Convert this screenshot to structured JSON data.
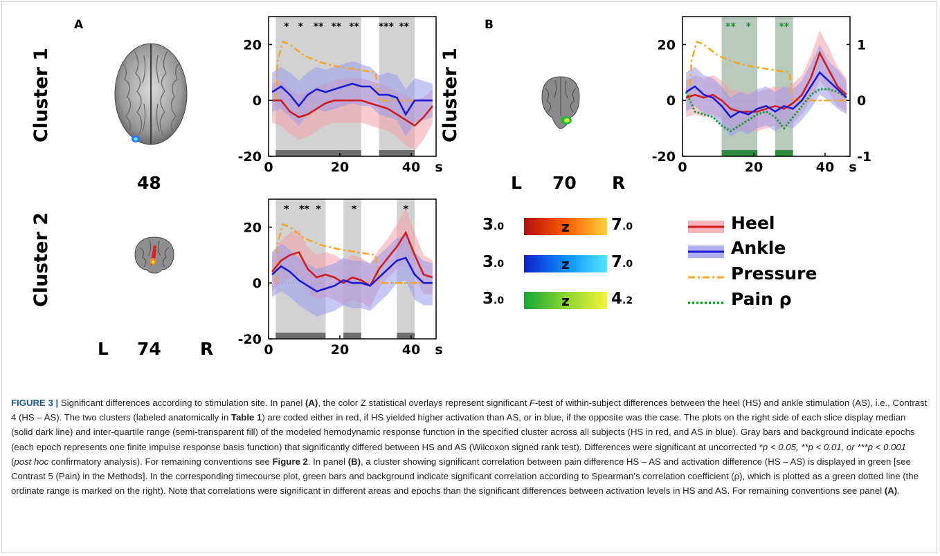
{
  "panels": {
    "a_label": "A",
    "b_label": "B"
  },
  "clusters": {
    "a1_label": "Cluster 1",
    "a2_label": "Cluster 2",
    "b1_label": "Cluster 1"
  },
  "slices": {
    "a1": "48",
    "a2": "74",
    "b1": "70",
    "left": "L",
    "right": "R"
  },
  "colorbars": [
    {
      "min": "3",
      "min_dec": ".0",
      "max": "7",
      "max_dec": ".0",
      "z": "z",
      "from": "#b01010",
      "mid": "#ff5a00",
      "to": "#ffd23a"
    },
    {
      "min": "3",
      "min_dec": ".0",
      "max": "7",
      "max_dec": ".0",
      "z": "z",
      "from": "#1020c8",
      "mid": "#0a8cff",
      "to": "#52e6ff"
    },
    {
      "min": "3",
      "min_dec": ".0",
      "max": "4",
      "max_dec": ".2",
      "z": "z",
      "from": "#14a83a",
      "mid": "#8ad630",
      "to": "#f4f23a"
    }
  ],
  "legend": {
    "heel": "Heel",
    "ankle": "Ankle",
    "pressure": "Pressure",
    "pain": "Pain ρ"
  },
  "colors": {
    "heel": "#d11c1c",
    "heel_fill": "#f0a0a8",
    "ankle": "#1a1ad6",
    "ankle_fill": "#9b9bec",
    "pressure": "#f5a623",
    "pain": "#149c2c",
    "gray_bg": "#d2d2d2",
    "green_bg": "#b8c9bd",
    "caption_head": "#1a5b8c"
  },
  "chart_data": [
    {
      "id": "A1",
      "type": "line",
      "xlim": [
        0,
        47
      ],
      "ylim": [
        -20,
        30
      ],
      "yticks": [
        "-20",
        "0",
        "20"
      ],
      "xticks": [
        "0",
        "20",
        "40"
      ],
      "x_unit": "s",
      "bg_spans": [
        [
          2,
          26
        ],
        [
          31,
          41
        ]
      ],
      "stars": [
        {
          "x": 5,
          "t": "*"
        },
        {
          "x": 9,
          "t": "*"
        },
        {
          "x": 14,
          "t": "**"
        },
        {
          "x": 19,
          "t": "**"
        },
        {
          "x": 24,
          "t": "**"
        },
        {
          "x": 33,
          "t": "***"
        },
        {
          "x": 38,
          "t": "**"
        }
      ],
      "x": [
        1,
        3.5,
        6,
        8.5,
        11,
        13.5,
        16,
        18.5,
        21,
        23.5,
        26,
        28.5,
        31,
        33.5,
        36,
        38.5,
        41,
        43.5,
        46
      ],
      "series": [
        {
          "name": "Heel",
          "values": [
            0,
            0,
            -4,
            -6,
            -5,
            -3,
            -1,
            0,
            0,
            0,
            0,
            -1,
            -2,
            -3,
            -5,
            -7,
            -9,
            -6,
            -2
          ],
          "lo": [
            -8,
            -9,
            -12,
            -14,
            -13,
            -11,
            -9,
            -8,
            -8,
            -8,
            -8,
            -9,
            -10,
            -11,
            -13,
            -16,
            -18,
            -14,
            -8
          ],
          "hi": [
            6,
            7,
            4,
            2,
            3,
            5,
            6,
            7,
            8,
            8,
            8,
            7,
            6,
            5,
            3,
            2,
            0,
            1,
            4
          ]
        },
        {
          "name": "Ankle",
          "values": [
            3,
            5,
            2,
            -2,
            2,
            4,
            3,
            4,
            5,
            6,
            5,
            5,
            2,
            2,
            1,
            -5,
            0,
            0,
            0
          ],
          "lo": [
            -4,
            -3,
            -6,
            -9,
            -5,
            -3,
            -4,
            -3,
            -2,
            -1,
            -2,
            -2,
            -5,
            -6,
            -7,
            -13,
            -8,
            -7,
            -6
          ],
          "hi": [
            10,
            12,
            10,
            7,
            10,
            12,
            11,
            12,
            13,
            14,
            13,
            12,
            9,
            10,
            9,
            4,
            8,
            7,
            6
          ]
        },
        {
          "name": "Pressure",
          "type": "step",
          "x": [
            2,
            2.5,
            4,
            6,
            10,
            15,
            20,
            25,
            30,
            31,
            46
          ],
          "values": [
            0,
            14,
            21,
            20,
            16,
            13.5,
            12,
            11,
            10,
            0,
            0
          ]
        }
      ],
      "grey_bars": [
        [
          2,
          26
        ],
        [
          31,
          41
        ]
      ]
    },
    {
      "id": "A2",
      "type": "line",
      "xlim": [
        0,
        47
      ],
      "ylim": [
        -20,
        30
      ],
      "yticks": [
        "-20",
        "0",
        "20"
      ],
      "xticks": [
        "0",
        "20",
        "40"
      ],
      "x_unit": "s",
      "bg_spans": [
        [
          2,
          16
        ],
        [
          21,
          26
        ],
        [
          36,
          41
        ]
      ],
      "stars": [
        {
          "x": 5,
          "t": "*"
        },
        {
          "x": 10,
          "t": "**"
        },
        {
          "x": 14,
          "t": "*"
        },
        {
          "x": 24,
          "t": "*"
        },
        {
          "x": 38.5,
          "t": "*"
        }
      ],
      "x": [
        1,
        3.5,
        6,
        8.5,
        11,
        13.5,
        16,
        18.5,
        21,
        23.5,
        26,
        28.5,
        31,
        33.5,
        36,
        38.5,
        41,
        43.5,
        46
      ],
      "series": [
        {
          "name": "Heel",
          "values": [
            4,
            8,
            10,
            11,
            5,
            2,
            3,
            2,
            0,
            2,
            1,
            -1,
            5,
            9,
            13,
            18,
            10,
            3,
            2
          ],
          "lo": [
            -3,
            0,
            2,
            3,
            -3,
            -6,
            -5,
            -6,
            -8,
            -6,
            -7,
            -9,
            -2,
            2,
            5,
            8,
            2,
            -4,
            -4
          ],
          "hi": [
            11,
            15,
            18,
            19,
            13,
            10,
            11,
            10,
            8,
            10,
            9,
            7,
            12,
            16,
            21,
            27,
            18,
            10,
            8
          ]
        },
        {
          "name": "Ankle",
          "values": [
            3,
            6,
            4,
            1,
            -1,
            -3,
            -2,
            -1,
            1,
            0,
            0,
            -1,
            2,
            5,
            8,
            9,
            3,
            0,
            0
          ],
          "lo": [
            -5,
            -3,
            -5,
            -8,
            -10,
            -12,
            -11,
            -10,
            -8,
            -9,
            -9,
            -10,
            -7,
            -4,
            0,
            1,
            -6,
            -8,
            -8
          ],
          "hi": [
            11,
            14,
            12,
            9,
            7,
            5,
            6,
            7,
            9,
            8,
            8,
            7,
            10,
            13,
            16,
            17,
            11,
            8,
            7
          ]
        },
        {
          "name": "Pressure",
          "type": "step",
          "x": [
            2,
            2.5,
            4,
            6,
            10,
            15,
            20,
            25,
            30,
            31,
            46
          ],
          "values": [
            0,
            14,
            21,
            20,
            16,
            13.5,
            12,
            11,
            10,
            0,
            0
          ]
        }
      ],
      "grey_bars": [
        [
          2,
          16
        ],
        [
          21,
          26
        ],
        [
          36,
          41
        ]
      ]
    },
    {
      "id": "B1",
      "type": "line",
      "xlim": [
        0,
        47
      ],
      "ylim": [
        -20,
        30
      ],
      "y2lim": [
        -1,
        1.5
      ],
      "yticks": [
        "-20",
        "0",
        "20"
      ],
      "y2ticks": [
        "-1",
        "0",
        "1"
      ],
      "xticks": [
        "0",
        "20",
        "40"
      ],
      "x_unit": "s",
      "bg_spans": [
        [
          11,
          21
        ],
        [
          26,
          31
        ]
      ],
      "stars": [
        {
          "x": 13.5,
          "t": "**"
        },
        {
          "x": 18.5,
          "t": "*"
        },
        {
          "x": 28.5,
          "t": "**"
        }
      ],
      "x": [
        1,
        3.5,
        6,
        8.5,
        11,
        13.5,
        16,
        18.5,
        21,
        23.5,
        26,
        28.5,
        31,
        33.5,
        36,
        38.5,
        41,
        43.5,
        46
      ],
      "series": [
        {
          "name": "Heel",
          "values": [
            1,
            2,
            1,
            2,
            0,
            -3,
            -4,
            -4,
            -4,
            -3,
            -2,
            -3,
            -1,
            2,
            8,
            17,
            11,
            5,
            2
          ],
          "lo": [
            -6,
            -5,
            -6,
            -5,
            -7,
            -10,
            -11,
            -11,
            -11,
            -10,
            -9,
            -10,
            -8,
            -5,
            0,
            7,
            3,
            -2,
            -4
          ],
          "hi": [
            7,
            9,
            8,
            9,
            7,
            4,
            3,
            3,
            3,
            4,
            5,
            4,
            6,
            9,
            16,
            25,
            19,
            12,
            8
          ]
        },
        {
          "name": "Ankle",
          "values": [
            3,
            5,
            2,
            1,
            -2,
            -6,
            -4,
            -5,
            -3,
            -2,
            -4,
            -2,
            -3,
            0,
            5,
            10,
            7,
            4,
            1
          ],
          "lo": [
            -4,
            -2,
            -5,
            -6,
            -9,
            -13,
            -11,
            -12,
            -10,
            -9,
            -11,
            -9,
            -10,
            -7,
            -3,
            2,
            0,
            -3,
            -5
          ],
          "hi": [
            10,
            12,
            9,
            8,
            5,
            1,
            3,
            2,
            4,
            5,
            3,
            5,
            4,
            7,
            13,
            20,
            14,
            11,
            7
          ]
        },
        {
          "name": "Pressure",
          "type": "step",
          "x": [
            2,
            2.5,
            4,
            6,
            10,
            15,
            20,
            25,
            30,
            31,
            46
          ],
          "values": [
            0,
            14,
            21,
            20,
            16,
            13.5,
            12,
            11,
            10,
            0,
            0
          ]
        },
        {
          "name": "Pain ρ",
          "axis": "right",
          "values": [
            0.15,
            -0.2,
            -0.25,
            -0.3,
            -0.45,
            -0.55,
            -0.45,
            -0.35,
            -0.25,
            -0.2,
            -0.3,
            -0.5,
            -0.3,
            -0.1,
            0.1,
            0.2,
            0.2,
            0.15,
            0.05
          ]
        }
      ],
      "green_bars": [
        [
          11,
          21
        ],
        [
          26,
          31
        ]
      ]
    }
  ],
  "caption": {
    "head": "FIGURE 3 |",
    "p1": " Significant differences according to stimulation site. In panel ",
    "a_ref": "(A)",
    "p2": ", the color Z statistical overlays represent significant ",
    "f_ital": "F",
    "p3": "-test of within-subject differences between the heel (HS) and ankle stimulation (AS), i.e., Contrast 4 (HS – AS). The two clusters (labeled anatomically in ",
    "table_ref": "Table 1",
    "p4": ") are coded either in red, if HS yielded higher activation than AS, or in blue, if the opposite was the case. The plots on the right side of each slice display median (solid dark line) and inter-quartile range (semi-transparent fill) of the modeled hemodynamic response function in the specified cluster across all subjects (HS in red, and AS in blue). Gray bars and background indicate epochs (each epoch represents one finite impulse response basis function) that significantly differed between HS and AS (Wilcoxon signed rank test). Differences were significant at uncorrected *",
    "pval": "p < 0.05, **p < 0.01, or ***p < 0.001",
    "p5": " (",
    "posthoc": "post hoc",
    "p6": " confirmatory analysis). For remaining conventions see ",
    "fig2_ref": "Figure 2",
    "p7": ". In panel ",
    "b_ref": "(B)",
    "p8": ", a cluster showing significant correlation between pain difference HS – AS and activation difference (HS – AS) is displayed in green [see Contrast 5 (Pain) in the Methods]. In the corresponding timecourse plot, green bars and background indicate significant correlation according to Spearman's correlation coefficient (ρ), which is plotted as a green dotted line (the ordinate range is marked on the right). Note that correlations were significant in different areas and epochs than the significant differences between activation levels in HS and AS. For remaining conventions see panel ",
    "a_ref2": "(A)",
    "p9": "."
  }
}
